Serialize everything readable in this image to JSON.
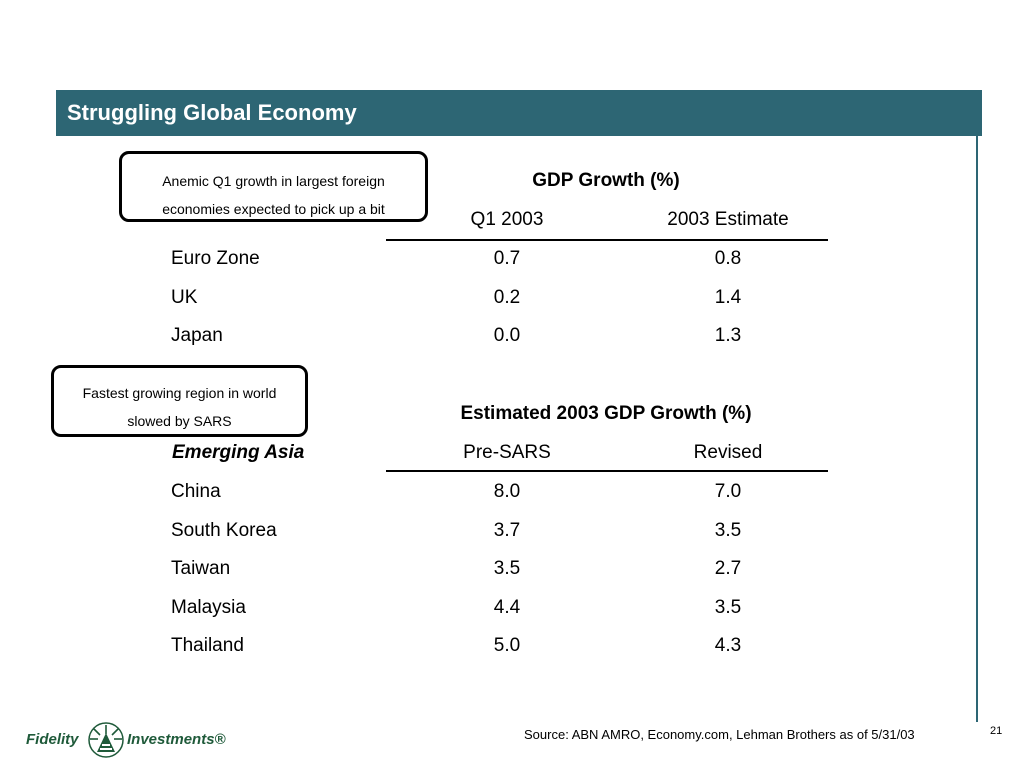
{
  "title": "Struggling Global Economy",
  "callouts": {
    "first": {
      "line1": "Anemic Q1 growth in largest foreign",
      "line2": "economies expected to pick up a bit"
    },
    "second": {
      "line1": "Fastest growing region in world",
      "line2": "slowed by SARS"
    }
  },
  "table1": {
    "heading": "GDP Growth (%)",
    "columns": [
      "Q1 2003",
      "2003 Estimate"
    ],
    "rows": [
      {
        "label": "Euro Zone",
        "values": [
          "0.7",
          "0.8"
        ]
      },
      {
        "label": "UK",
        "values": [
          "0.2",
          "1.4"
        ]
      },
      {
        "label": "Japan",
        "values": [
          "0.0",
          "1.3"
        ]
      }
    ]
  },
  "table2": {
    "heading": "Estimated 2003 GDP Growth (%)",
    "region_label": "Emerging Asia",
    "columns": [
      "Pre-SARS",
      "Revised"
    ],
    "rows": [
      {
        "label": "China",
        "values": [
          "8.0",
          "7.0"
        ]
      },
      {
        "label": "South Korea",
        "values": [
          "3.7",
          "3.5"
        ]
      },
      {
        "label": "Taiwan",
        "values": [
          "3.5",
          "2.7"
        ]
      },
      {
        "label": "Malaysia",
        "values": [
          "4.4",
          "3.5"
        ]
      },
      {
        "label": "Thailand",
        "values": [
          "5.0",
          "4.3"
        ]
      }
    ]
  },
  "footer": {
    "logo_left": "Fidelity",
    "logo_right": "Investments®",
    "source": "Source: ABN AMRO, Economy.com, Lehman Brothers as of 5/31/03",
    "page_number": "21"
  },
  "colors": {
    "title_bar": "#2d6674",
    "logo": "#1f5a3a"
  },
  "icons": [
    "fidelity-pyramid-logo"
  ]
}
